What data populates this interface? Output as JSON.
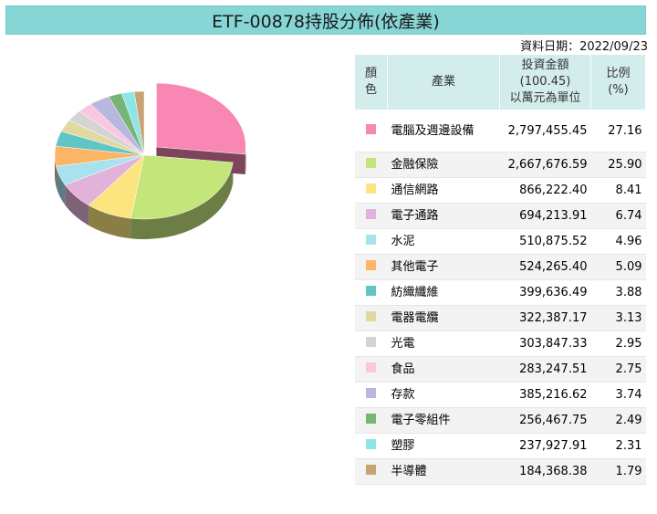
{
  "title": "ETF-00878持股分佈(依產業)",
  "date_label": "資料日期：2022/09/23",
  "table_header": {
    "color": "顏色",
    "industry": "產業",
    "amount_line1": "投資金額",
    "amount_line2": "(100.45)",
    "amount_line3": "以萬元為單位",
    "ratio_line1": "比例",
    "ratio_line2": "(%)"
  },
  "chart_data": {
    "type": "pie",
    "title": "ETF-00878持股分佈(依產業)",
    "series": [
      {
        "name": "電腦及週邊設備",
        "amount": "2,797,455.45",
        "value": 27.16,
        "color": "#f987b3"
      },
      {
        "name": "金融保險",
        "amount": "2,667,676.59",
        "value": 25.9,
        "color": "#c4e57a"
      },
      {
        "name": "通信網路",
        "amount": "866,222.40",
        "value": 8.41,
        "color": "#fce57e"
      },
      {
        "name": "電子通路",
        "amount": "694,213.91",
        "value": 6.74,
        "color": "#e3b2db"
      },
      {
        "name": "水泥",
        "amount": "510,875.52",
        "value": 4.96,
        "color": "#a9e2ef"
      },
      {
        "name": "其他電子",
        "amount": "524,265.40",
        "value": 5.09,
        "color": "#fbb565"
      },
      {
        "name": "紡織纖維",
        "amount": "399,636.49",
        "value": 3.88,
        "color": "#5fc6c4"
      },
      {
        "name": "電器電纜",
        "amount": "322,387.17",
        "value": 3.13,
        "color": "#e1d9a0"
      },
      {
        "name": "光電",
        "amount": "303,847.33",
        "value": 2.95,
        "color": "#d4d4d4"
      },
      {
        "name": "食品",
        "amount": "283,247.51",
        "value": 2.75,
        "color": "#f9c7e1"
      },
      {
        "name": "存款",
        "amount": "385,216.62",
        "value": 3.74,
        "color": "#b7b7df"
      },
      {
        "name": "電子零組件",
        "amount": "256,467.75",
        "value": 2.49,
        "color": "#76b576"
      },
      {
        "name": "塑膠",
        "amount": "237,927.91",
        "value": 2.31,
        "color": "#8de5e6"
      },
      {
        "name": "半導體",
        "amount": "184,368.38",
        "value": 1.79,
        "color": "#c8a373"
      }
    ]
  }
}
